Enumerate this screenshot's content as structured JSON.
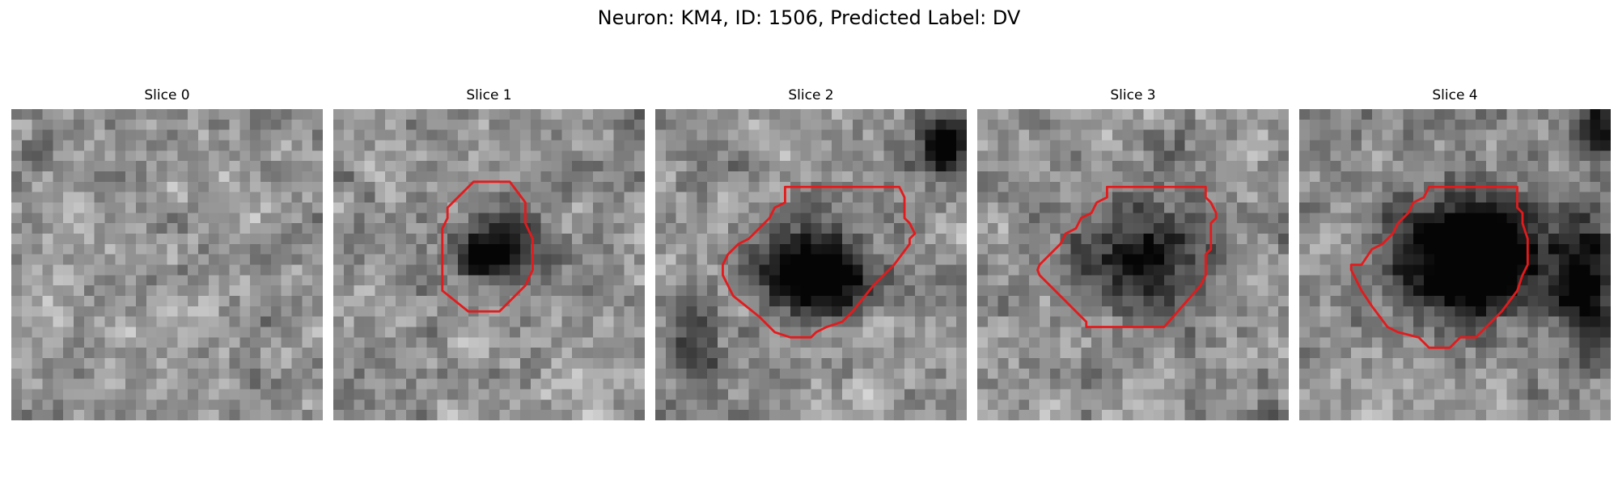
{
  "figure": {
    "title": "Neuron: KM4, ID: 1506, Predicted Label: DV"
  },
  "contour_color": "#e41a1c",
  "colormap": "gray",
  "panels": [
    {
      "title": "Slice 0",
      "seed": 11,
      "blobs": [],
      "has_contour": false
    },
    {
      "title": "Slice 1",
      "seed": 23,
      "blobs": [
        {
          "cx": 15.3,
          "cy": 12.9,
          "rx": 3.9,
          "ry": 3.4,
          "depth": 0.6
        },
        {
          "cx": 13.2,
          "cy": 13.8,
          "rx": 2.2,
          "ry": 1.6,
          "depth": 0.35
        }
      ],
      "has_contour": true
    },
    {
      "title": "Slice 2",
      "seed": 37,
      "blobs": [
        {
          "cx": 15.0,
          "cy": 15.0,
          "rx": 5.0,
          "ry": 4.6,
          "depth": 0.8
        },
        {
          "cx": 27.5,
          "cy": 3.0,
          "rx": 3.0,
          "ry": 3.2,
          "depth": 0.7
        },
        {
          "cx": 3.5,
          "cy": 22.0,
          "rx": 2.6,
          "ry": 5.0,
          "depth": 0.35
        }
      ],
      "has_contour": true
    },
    {
      "title": "Slice 3",
      "seed": 41,
      "blobs": [
        {
          "cx": 15.5,
          "cy": 14.0,
          "rx": 6.2,
          "ry": 5.8,
          "depth": 0.55
        }
      ],
      "has_contour": true
    },
    {
      "title": "Slice 4",
      "seed": 53,
      "blobs": [
        {
          "cx": 16.0,
          "cy": 13.5,
          "rx": 7.2,
          "ry": 6.0,
          "depth": 0.95
        },
        {
          "cx": 27.0,
          "cy": 16.0,
          "rx": 2.8,
          "ry": 6.5,
          "depth": 0.65
        },
        {
          "cx": 28.5,
          "cy": 1.5,
          "rx": 2.5,
          "ry": 3.0,
          "depth": 0.55
        }
      ],
      "has_contour": true
    }
  ]
}
